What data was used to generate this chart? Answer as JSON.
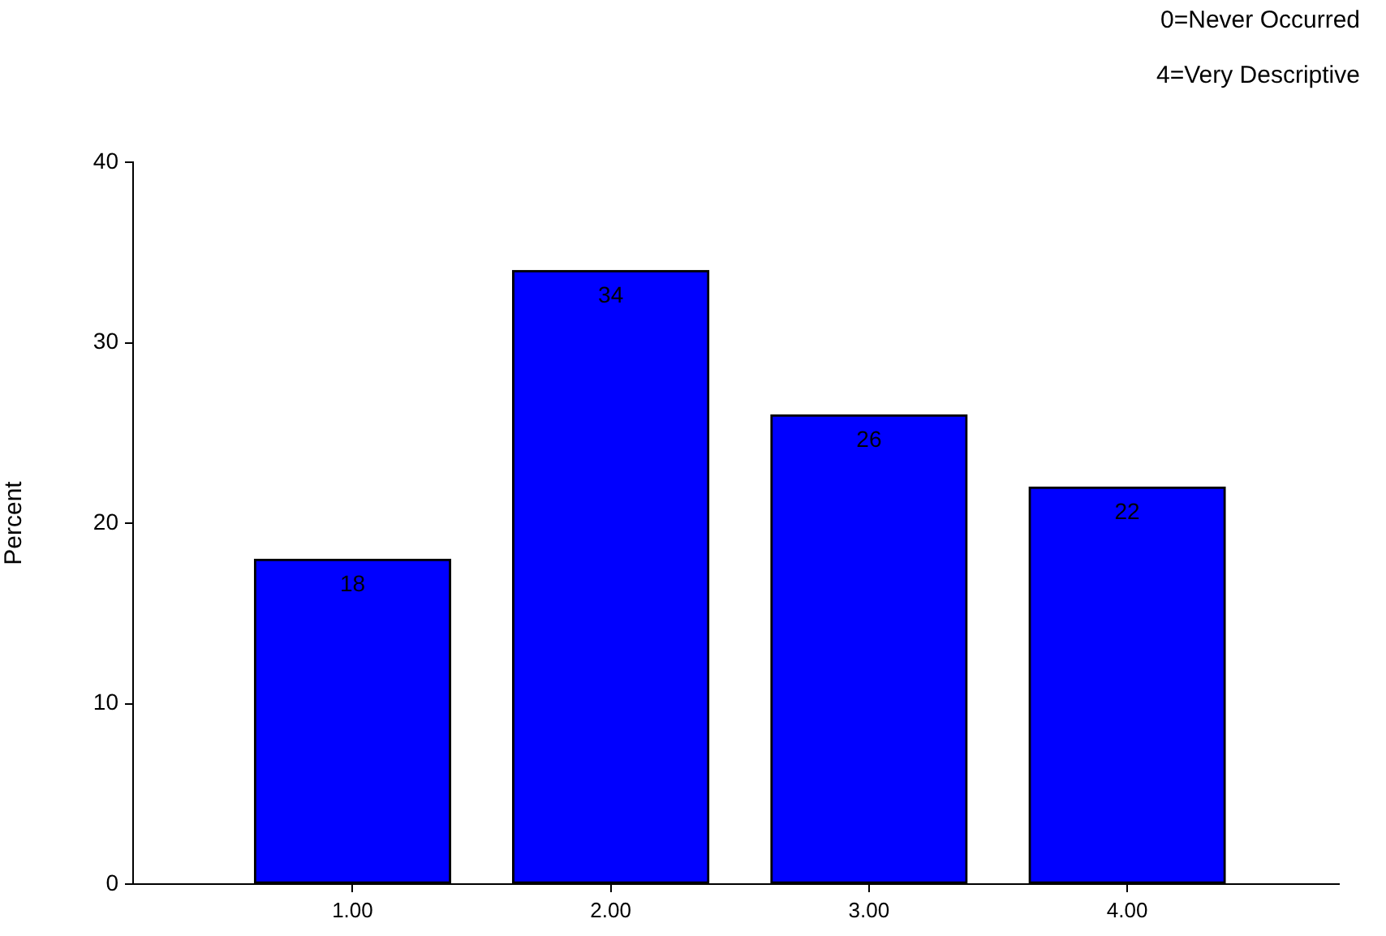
{
  "chart_data": {
    "type": "bar",
    "categories": [
      "1.00",
      "2.00",
      "3.00",
      "4.00"
    ],
    "values": [
      18,
      34,
      26,
      22
    ],
    "color": "#0000ff",
    "ylabel": "Percent",
    "ylim": [
      0,
      40
    ],
    "yticks": [
      0,
      10,
      20,
      30,
      40
    ],
    "data_labels": true,
    "annotations": [
      "0=Never Occurred",
      "4=Very Descriptive"
    ]
  }
}
